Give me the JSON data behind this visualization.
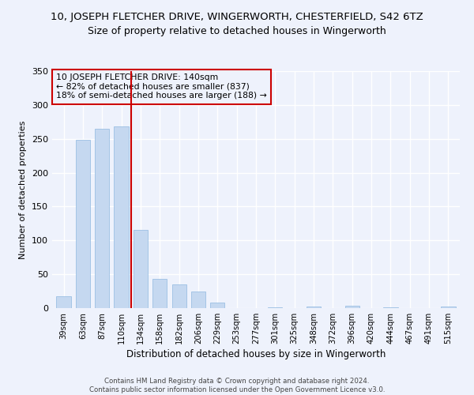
{
  "title": "10, JOSEPH FLETCHER DRIVE, WINGERWORTH, CHESTERFIELD, S42 6TZ",
  "subtitle": "Size of property relative to detached houses in Wingerworth",
  "xlabel": "Distribution of detached houses by size in Wingerworth",
  "ylabel": "Number of detached properties",
  "categories": [
    "39sqm",
    "63sqm",
    "87sqm",
    "110sqm",
    "134sqm",
    "158sqm",
    "182sqm",
    "206sqm",
    "229sqm",
    "253sqm",
    "277sqm",
    "301sqm",
    "325sqm",
    "348sqm",
    "372sqm",
    "396sqm",
    "420sqm",
    "444sqm",
    "467sqm",
    "491sqm",
    "515sqm"
  ],
  "values": [
    18,
    248,
    265,
    268,
    115,
    43,
    35,
    25,
    8,
    0,
    0,
    1,
    0,
    2,
    0,
    3,
    0,
    1,
    0,
    0,
    2
  ],
  "bar_color": "#c5d8f0",
  "bar_edge_color": "#8fb8e0",
  "property_bar_index": 4,
  "property_label": "10 JOSEPH FLETCHER DRIVE: 140sqm",
  "annotation_line1": "← 82% of detached houses are smaller (837)",
  "annotation_line2": "18% of semi-detached houses are larger (188) →",
  "vline_color": "#cc0000",
  "annotation_box_edge": "#cc0000",
  "ylim": [
    0,
    350
  ],
  "yticks": [
    0,
    50,
    100,
    150,
    200,
    250,
    300,
    350
  ],
  "footer_line1": "Contains HM Land Registry data © Crown copyright and database right 2024.",
  "footer_line2": "Contains public sector information licensed under the Open Government Licence v3.0.",
  "bg_color": "#eef2fc",
  "grid_color": "#ffffff",
  "title_fontsize": 9.5,
  "subtitle_fontsize": 9,
  "bar_width": 0.75
}
